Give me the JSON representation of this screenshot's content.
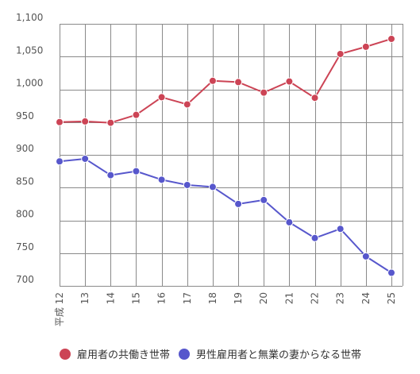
{
  "chart_data": {
    "type": "line",
    "categories": [
      "平成 12",
      "13",
      "14",
      "15",
      "16",
      "17",
      "18",
      "19",
      "20",
      "21",
      "22",
      "23",
      "24",
      "25"
    ],
    "ylim": [
      700,
      1100
    ],
    "yticks": [
      700,
      750,
      800,
      850,
      900,
      950,
      "1,000",
      "1,050",
      "1,100"
    ],
    "grid": true,
    "legend_position": "bottom",
    "series": [
      {
        "name": "雇用者の共働き世帯",
        "color": "#cc4455",
        "values": [
          950,
          951,
          949,
          961,
          988,
          977,
          1013,
          1011,
          995,
          1012,
          987,
          1054,
          1065,
          1077
        ]
      },
      {
        "name": "男性雇用者と無業の妻からなる世帯",
        "color": "#5757cc",
        "values": [
          890,
          894,
          869,
          875,
          862,
          854,
          851,
          825,
          831,
          797,
          773,
          787,
          745,
          720
        ]
      }
    ]
  }
}
